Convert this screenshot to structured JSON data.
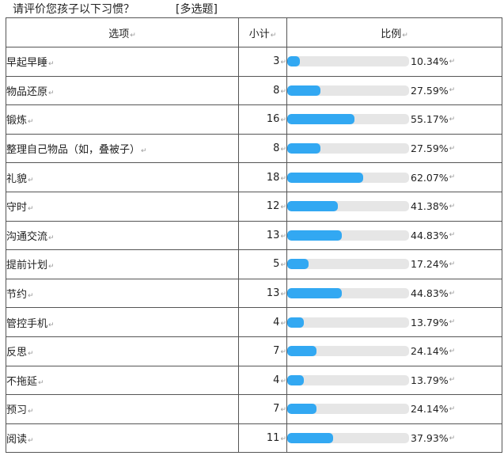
{
  "question": {
    "text": "请评价您孩子以下习惯？",
    "type": "[多选题]"
  },
  "table": {
    "headers": {
      "option": "选项",
      "count": "小计",
      "ratio": "比例"
    },
    "rows": [
      {
        "option": "早起早睡",
        "count": "3",
        "percent": "10.34%",
        "fraction": 0.1034
      },
      {
        "option": "物品还原",
        "count": "8",
        "percent": "27.59%",
        "fraction": 0.2759
      },
      {
        "option": "锻炼",
        "count": "16",
        "percent": "55.17%",
        "fraction": 0.5517
      },
      {
        "option": "整理自己物品（如，叠被子）",
        "count": "8",
        "percent": "27.59%",
        "fraction": 0.2759
      },
      {
        "option": "礼貌",
        "count": "18",
        "percent": "62.07%",
        "fraction": 0.6207
      },
      {
        "option": "守时",
        "count": "12",
        "percent": "41.38%",
        "fraction": 0.4138
      },
      {
        "option": "沟通交流",
        "count": "13",
        "percent": "44.83%",
        "fraction": 0.4483
      },
      {
        "option": "提前计划",
        "count": "5",
        "percent": "17.24%",
        "fraction": 0.1724
      },
      {
        "option": "节约",
        "count": "13",
        "percent": "44.83%",
        "fraction": 0.4483
      },
      {
        "option": "管控手机",
        "count": "4",
        "percent": "13.79%",
        "fraction": 0.1379
      },
      {
        "option": "反思",
        "count": "7",
        "percent": "24.14%",
        "fraction": 0.2414
      },
      {
        "option": "不拖延",
        "count": "4",
        "percent": "13.79%",
        "fraction": 0.1379
      },
      {
        "option": "预习",
        "count": "7",
        "percent": "24.14%",
        "fraction": 0.2414
      },
      {
        "option": "阅读",
        "count": "11",
        "percent": "37.93%",
        "fraction": 0.3793
      }
    ]
  },
  "colors": {
    "bar_fill": "#32a8f2",
    "bar_track": "#e6e6e6",
    "border": "#555555"
  },
  "paragraph_mark": "↵"
}
